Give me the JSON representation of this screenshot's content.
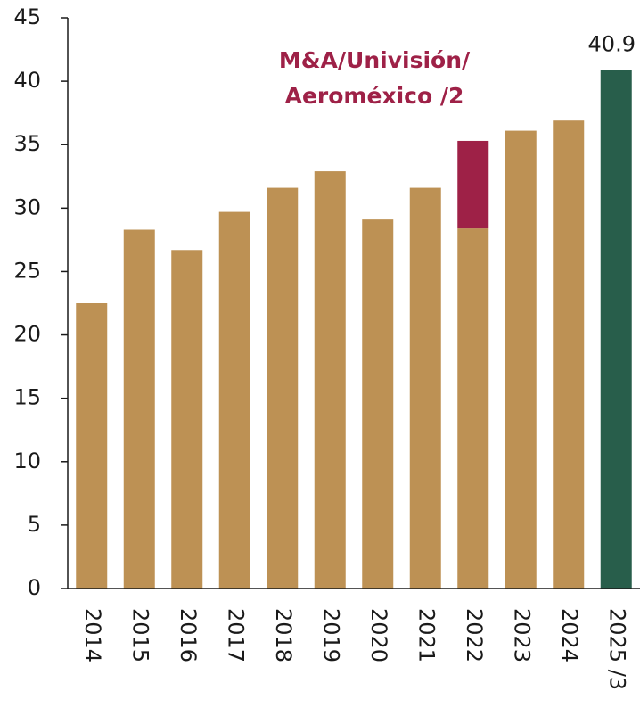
{
  "chart_data": {
    "type": "bar",
    "stacked": true,
    "annotation": "M&A/Univisión/ Aeroméxico /2",
    "categories": [
      "2014",
      "2015",
      "2016",
      "2017",
      "2018",
      "2019",
      "2020",
      "2021",
      "2022",
      "2023",
      "2024",
      "2025 /3"
    ],
    "series": [
      {
        "color": "#bd9154",
        "values": [
          22.5,
          28.3,
          26.7,
          29.7,
          31.6,
          32.9,
          29.1,
          31.6,
          28.4,
          36.1,
          36.9,
          null
        ]
      },
      {
        "color": "#9e2147",
        "values": [
          null,
          null,
          null,
          null,
          null,
          null,
          null,
          null,
          6.9,
          null,
          null,
          null
        ]
      },
      {
        "color": "#285e4b",
        "values": [
          null,
          null,
          null,
          null,
          null,
          null,
          null,
          null,
          null,
          null,
          null,
          40.9
        ],
        "data_labels": true
      }
    ],
    "ylim": [
      0,
      45
    ],
    "yticks": [
      0,
      5,
      10,
      15,
      20,
      25,
      30,
      35,
      40,
      45
    ],
    "grid": false
  }
}
